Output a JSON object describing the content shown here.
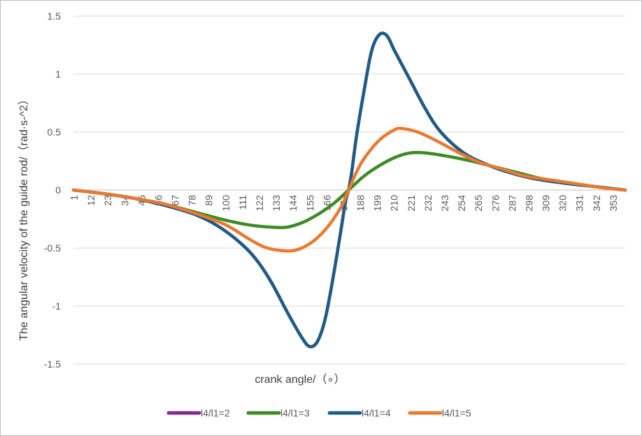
{
  "chart_data": {
    "type": "line",
    "title": "",
    "xlabel": "crank angle/（∘）",
    "ylabel": "The angular velocity of the guide rod/（rad·s-^2）",
    "x_tick_labels": [
      "1",
      "12",
      "23",
      "34",
      "45",
      "56",
      "67",
      "78",
      "89",
      "100",
      "111",
      "122",
      "133",
      "144",
      "155",
      "166",
      "177",
      "188",
      "199",
      "210",
      "221",
      "232",
      "243",
      "254",
      "265",
      "276",
      "287",
      "298",
      "309",
      "320",
      "331",
      "342",
      "353"
    ],
    "xlim": [
      1,
      360
    ],
    "ylim": [
      -1.5,
      1.5
    ],
    "y_ticks": [
      1.5,
      1,
      0.5,
      0,
      -0.5,
      -1,
      -1.5
    ],
    "y_tick_labels": [
      "1.5",
      "1",
      "0.5",
      "0",
      "-0.5",
      "-1",
      "-1.5"
    ],
    "grid": "horizontal",
    "legend_position": "bottom",
    "series": [
      {
        "name": "l4/l1=2",
        "color": "#7e2a8e",
        "points": [
          [
            1,
            0
          ],
          [
            20,
            -0.03
          ],
          [
            40,
            -0.07
          ],
          [
            60,
            -0.13
          ],
          [
            80,
            -0.21
          ],
          [
            95,
            -0.31
          ],
          [
            110,
            -0.46
          ],
          [
            120,
            -0.6
          ],
          [
            130,
            -0.8
          ],
          [
            140,
            -1.05
          ],
          [
            150,
            -1.28
          ],
          [
            155,
            -1.35
          ],
          [
            160,
            -1.3
          ],
          [
            165,
            -1.1
          ],
          [
            170,
            -0.75
          ],
          [
            175,
            -0.35
          ],
          [
            178,
            -0.1
          ],
          [
            180,
            0
          ],
          [
            182,
            0.15
          ],
          [
            185,
            0.45
          ],
          [
            190,
            0.85
          ],
          [
            195,
            1.2
          ],
          [
            200,
            1.34
          ],
          [
            205,
            1.33
          ],
          [
            210,
            1.2
          ],
          [
            220,
            0.95
          ],
          [
            230,
            0.7
          ],
          [
            240,
            0.5
          ],
          [
            255,
            0.32
          ],
          [
            270,
            0.22
          ],
          [
            285,
            0.15
          ],
          [
            300,
            0.1
          ],
          [
            320,
            0.06
          ],
          [
            340,
            0.03
          ],
          [
            360,
            0
          ]
        ]
      },
      {
        "name": "l4/l1=3",
        "color": "#3e8a26",
        "points": [
          [
            1,
            0
          ],
          [
            20,
            -0.03
          ],
          [
            40,
            -0.07
          ],
          [
            60,
            -0.12
          ],
          [
            80,
            -0.19
          ],
          [
            100,
            -0.26
          ],
          [
            115,
            -0.3
          ],
          [
            130,
            -0.32
          ],
          [
            140,
            -0.32
          ],
          [
            150,
            -0.28
          ],
          [
            160,
            -0.21
          ],
          [
            170,
            -0.12
          ],
          [
            180,
            0
          ],
          [
            190,
            0.12
          ],
          [
            200,
            0.21
          ],
          [
            210,
            0.28
          ],
          [
            220,
            0.32
          ],
          [
            230,
            0.32
          ],
          [
            245,
            0.29
          ],
          [
            260,
            0.25
          ],
          [
            275,
            0.2
          ],
          [
            290,
            0.15
          ],
          [
            305,
            0.1
          ],
          [
            320,
            0.07
          ],
          [
            340,
            0.03
          ],
          [
            360,
            0
          ]
        ]
      },
      {
        "name": "l4/l1=4",
        "color": "#1f5c84",
        "points": [
          [
            1,
            0
          ],
          [
            20,
            -0.03
          ],
          [
            40,
            -0.07
          ],
          [
            60,
            -0.13
          ],
          [
            80,
            -0.21
          ],
          [
            95,
            -0.31
          ],
          [
            110,
            -0.46
          ],
          [
            120,
            -0.6
          ],
          [
            130,
            -0.8
          ],
          [
            140,
            -1.05
          ],
          [
            150,
            -1.28
          ],
          [
            155,
            -1.35
          ],
          [
            160,
            -1.3
          ],
          [
            165,
            -1.1
          ],
          [
            170,
            -0.75
          ],
          [
            175,
            -0.35
          ],
          [
            178,
            -0.1
          ],
          [
            180,
            0
          ],
          [
            182,
            0.15
          ],
          [
            185,
            0.45
          ],
          [
            190,
            0.85
          ],
          [
            195,
            1.2
          ],
          [
            200,
            1.34
          ],
          [
            205,
            1.33
          ],
          [
            210,
            1.2
          ],
          [
            220,
            0.95
          ],
          [
            230,
            0.7
          ],
          [
            240,
            0.5
          ],
          [
            255,
            0.32
          ],
          [
            270,
            0.22
          ],
          [
            285,
            0.15
          ],
          [
            300,
            0.1
          ],
          [
            320,
            0.06
          ],
          [
            340,
            0.03
          ],
          [
            360,
            0
          ]
        ]
      },
      {
        "name": "l4/l1=5",
        "color": "#e97a2f",
        "points": [
          [
            1,
            0
          ],
          [
            20,
            -0.03
          ],
          [
            40,
            -0.07
          ],
          [
            60,
            -0.12
          ],
          [
            80,
            -0.2
          ],
          [
            100,
            -0.3
          ],
          [
            115,
            -0.42
          ],
          [
            125,
            -0.49
          ],
          [
            135,
            -0.52
          ],
          [
            145,
            -0.52
          ],
          [
            155,
            -0.46
          ],
          [
            165,
            -0.34
          ],
          [
            175,
            -0.15
          ],
          [
            180,
            0
          ],
          [
            185,
            0.15
          ],
          [
            190,
            0.27
          ],
          [
            200,
            0.43
          ],
          [
            210,
            0.52
          ],
          [
            215,
            0.53
          ],
          [
            225,
            0.5
          ],
          [
            235,
            0.44
          ],
          [
            245,
            0.37
          ],
          [
            255,
            0.3
          ],
          [
            265,
            0.24
          ],
          [
            280,
            0.18
          ],
          [
            295,
            0.12
          ],
          [
            310,
            0.09
          ],
          [
            330,
            0.05
          ],
          [
            345,
            0.02
          ],
          [
            360,
            0
          ]
        ]
      }
    ]
  }
}
